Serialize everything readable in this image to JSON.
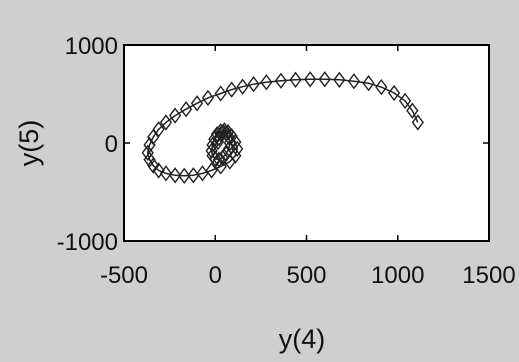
{
  "chart_data": {
    "type": "scatter",
    "title": "",
    "xlabel": "y(4)",
    "ylabel": "y(5)",
    "xlim": [
      -500,
      1500
    ],
    "ylim": [
      -1000,
      1000
    ],
    "x_ticks": [
      -500,
      0,
      500,
      1000,
      1500
    ],
    "y_ticks": [
      -1000,
      0,
      1000
    ],
    "x_tick_labels": [
      "-500",
      "0",
      "500",
      "1000",
      "1500"
    ],
    "y_tick_labels": [
      "-1000",
      "0",
      "1000"
    ],
    "grid": false,
    "legend": "none",
    "series": [
      {
        "marker": "diamond",
        "connected": true,
        "color": "#222222",
        "x": [
          1110,
          1080,
          1040,
          980,
          910,
          840,
          760,
          680,
          600,
          520,
          440,
          360,
          280,
          210,
          150,
          90,
          30,
          -40,
          -100,
          -160,
          -220,
          -270,
          -310,
          -340,
          -360,
          -370,
          -360,
          -340,
          -310,
          -270,
          -220,
          -170,
          -120,
          -70,
          -20,
          30,
          80,
          110,
          120,
          110,
          90,
          70,
          50,
          30,
          10,
          -5,
          -15,
          -20,
          -15,
          0,
          20,
          40,
          60,
          75,
          80,
          75,
          60,
          45,
          30,
          20,
          15
        ],
        "y": [
          210,
          330,
          430,
          510,
          570,
          610,
          630,
          645,
          650,
          650,
          645,
          635,
          620,
          600,
          575,
          545,
          505,
          460,
          405,
          345,
          280,
          210,
          140,
          60,
          -20,
          -100,
          -170,
          -230,
          -280,
          -310,
          -330,
          -335,
          -330,
          -310,
          -280,
          -240,
          -190,
          -130,
          -60,
          10,
          70,
          110,
          130,
          120,
          90,
          40,
          -20,
          -80,
          -130,
          -160,
          -170,
          -150,
          -110,
          -60,
          0,
          60,
          100,
          110,
          90,
          50,
          10
        ]
      }
    ]
  }
}
